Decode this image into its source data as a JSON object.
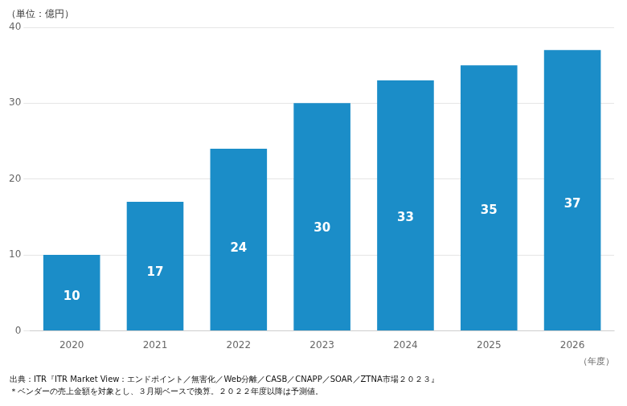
{
  "chart_data": {
    "type": "bar",
    "categories": [
      "2020",
      "2021",
      "2022",
      "2023",
      "2024",
      "2025",
      "2026"
    ],
    "values": [
      10,
      17,
      24,
      30,
      33,
      35,
      37
    ],
    "color": "#1B8DC8",
    "ylabel": "（単位：億円）",
    "xlabel": "（年度）",
    "ylim": [
      0,
      40
    ],
    "yticks": [
      0,
      10,
      20,
      30,
      40
    ],
    "grid": true,
    "data_labels": true,
    "annotations": [
      "出典：ITR『ITR Market View：エンドポイント／無害化／Web分離／CASB／CNAPP／SOAR／ZTNA市場２０２３』",
      "＊ベンダーの売上金額を対象とし、３月期ベースで換算。２０２２年度以降は予測値。"
    ]
  }
}
